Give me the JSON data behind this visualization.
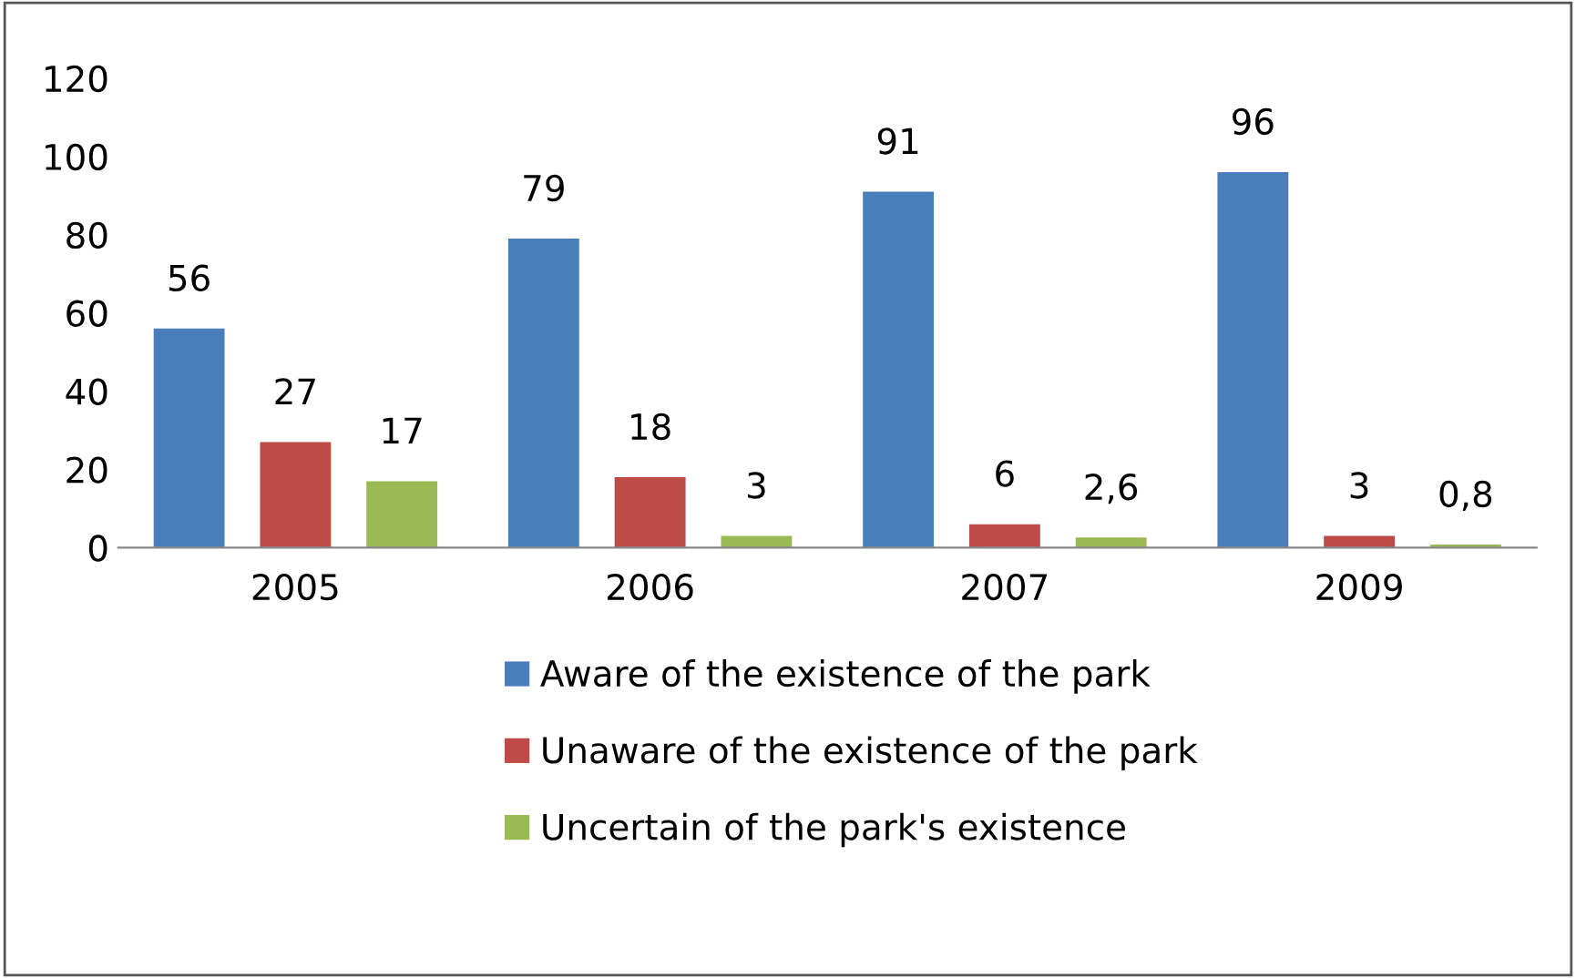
{
  "chart_data": {
    "type": "bar",
    "categories": [
      "2005",
      "2006",
      "2007",
      "2009"
    ],
    "series": [
      {
        "name": "Aware of the existence of the park",
        "color": "#4a7ebb",
        "values": [
          56,
          79,
          91,
          96
        ],
        "value_labels": [
          "56",
          "79",
          "91",
          "96"
        ]
      },
      {
        "name": "Unaware of the existence of the park",
        "color": "#be4b48",
        "values": [
          27,
          18,
          6,
          3
        ],
        "value_labels": [
          "27",
          "18",
          "6",
          "3"
        ]
      },
      {
        "name": "Uncertain of the park's existence",
        "color": "#98b954",
        "values": [
          17,
          3,
          2.6,
          0.8
        ],
        "value_labels": [
          "17",
          "3",
          "2,6",
          "0,8"
        ]
      }
    ],
    "ylim": [
      0,
      120
    ],
    "yticks": [
      0,
      20,
      40,
      60,
      80,
      100,
      120
    ],
    "grid": false,
    "legend": "bottom"
  }
}
